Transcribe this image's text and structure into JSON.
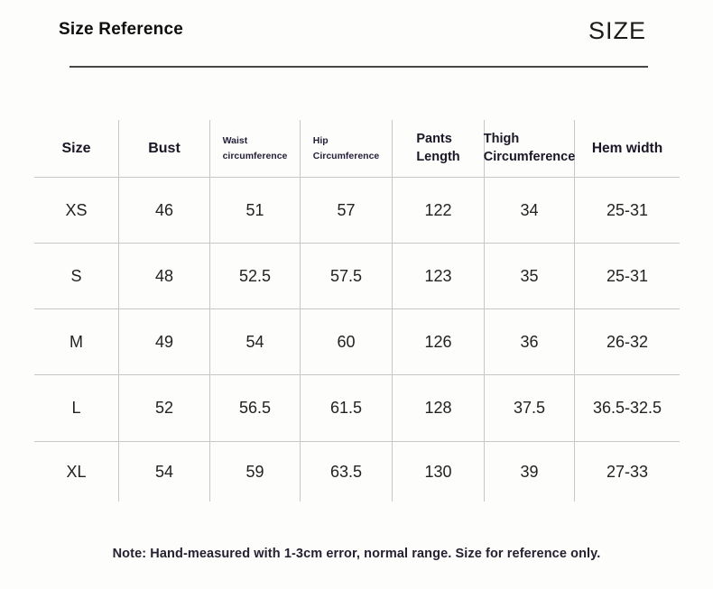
{
  "page": {
    "title": "Size Reference",
    "watermark": "SIZE",
    "note": "Note: Hand-measured with 1-3cm error, normal range. Size for reference only."
  },
  "colors": {
    "divider_line": "#474747",
    "grid_line": "#c7c7c7",
    "text": "#1f1f1f"
  },
  "table": {
    "headers": [
      [
        "Size"
      ],
      [
        "Bust"
      ],
      [
        "Waist",
        "circumference"
      ],
      [
        "Hip",
        "Circumference"
      ],
      [
        "Pants",
        "Length"
      ],
      [
        "Thigh",
        "Circumference"
      ],
      [
        "Hem width"
      ]
    ],
    "rows": [
      [
        "XS",
        "46",
        "51",
        "57",
        "122",
        "34",
        "25-31"
      ],
      [
        "S",
        "48",
        "52.5",
        "57.5",
        "123",
        "35",
        "25-31"
      ],
      [
        "M",
        "49",
        "54",
        "60",
        "126",
        "36",
        "26-32"
      ],
      [
        "L",
        "52",
        "56.5",
        "61.5",
        "128",
        "37.5",
        "36.5-32.5"
      ],
      [
        "XL",
        "54",
        "59",
        "63.5",
        "130",
        "39",
        "27-33"
      ]
    ]
  }
}
